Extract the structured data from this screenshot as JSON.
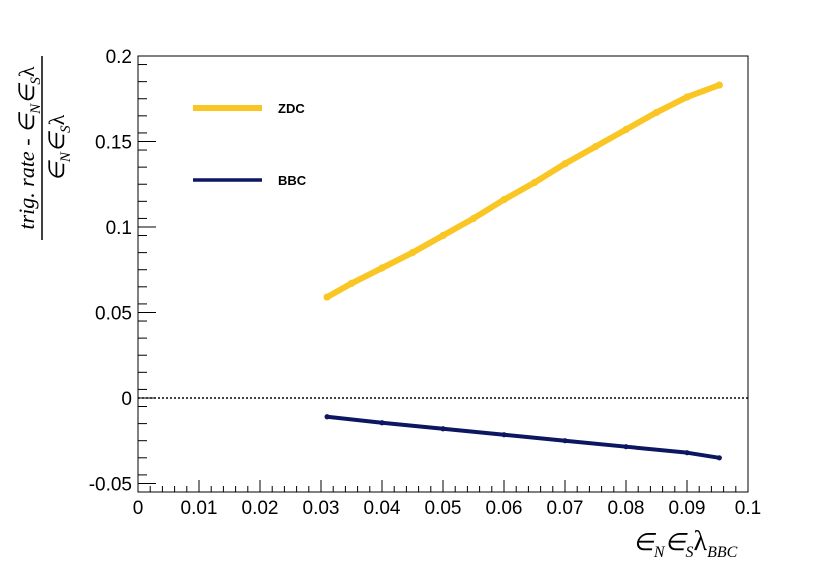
{
  "chart_data": {
    "type": "scatter",
    "xlabel": "∈N∈Sλ BBC",
    "ylabel": "trig. rate - ∈N∈Sλ / ∈N∈Sλ",
    "xlim": [
      0,
      0.1
    ],
    "ylim": [
      -0.055,
      0.2
    ],
    "x_ticks": [
      "0",
      "0.01",
      "0.02",
      "0.03",
      "0.04",
      "0.05",
      "0.06",
      "0.07",
      "0.08",
      "0.09",
      "0.1"
    ],
    "y_ticks": [
      "-0.05",
      "0",
      "0.05",
      "0.1",
      "0.15",
      "0.2"
    ],
    "reference_line": {
      "y": 0,
      "style": "dotted"
    },
    "legend_placement": "top-left",
    "series": [
      {
        "name": "ZDC",
        "color": "#f9c623",
        "x": [
          0.031,
          0.035,
          0.04,
          0.045,
          0.05,
          0.055,
          0.06,
          0.065,
          0.07,
          0.075,
          0.08,
          0.085,
          0.09,
          0.0953
        ],
        "values": [
          0.059,
          0.067,
          0.076,
          0.085,
          0.095,
          0.105,
          0.116,
          0.126,
          0.137,
          0.147,
          0.157,
          0.167,
          0.176,
          0.183
        ]
      },
      {
        "name": "BBC",
        "color": "#0d1660",
        "x": [
          0.031,
          0.04,
          0.05,
          0.06,
          0.07,
          0.08,
          0.09,
          0.0953
        ],
        "values": [
          -0.011,
          -0.0145,
          -0.018,
          -0.0215,
          -0.025,
          -0.0285,
          -0.032,
          -0.035
        ]
      }
    ]
  }
}
